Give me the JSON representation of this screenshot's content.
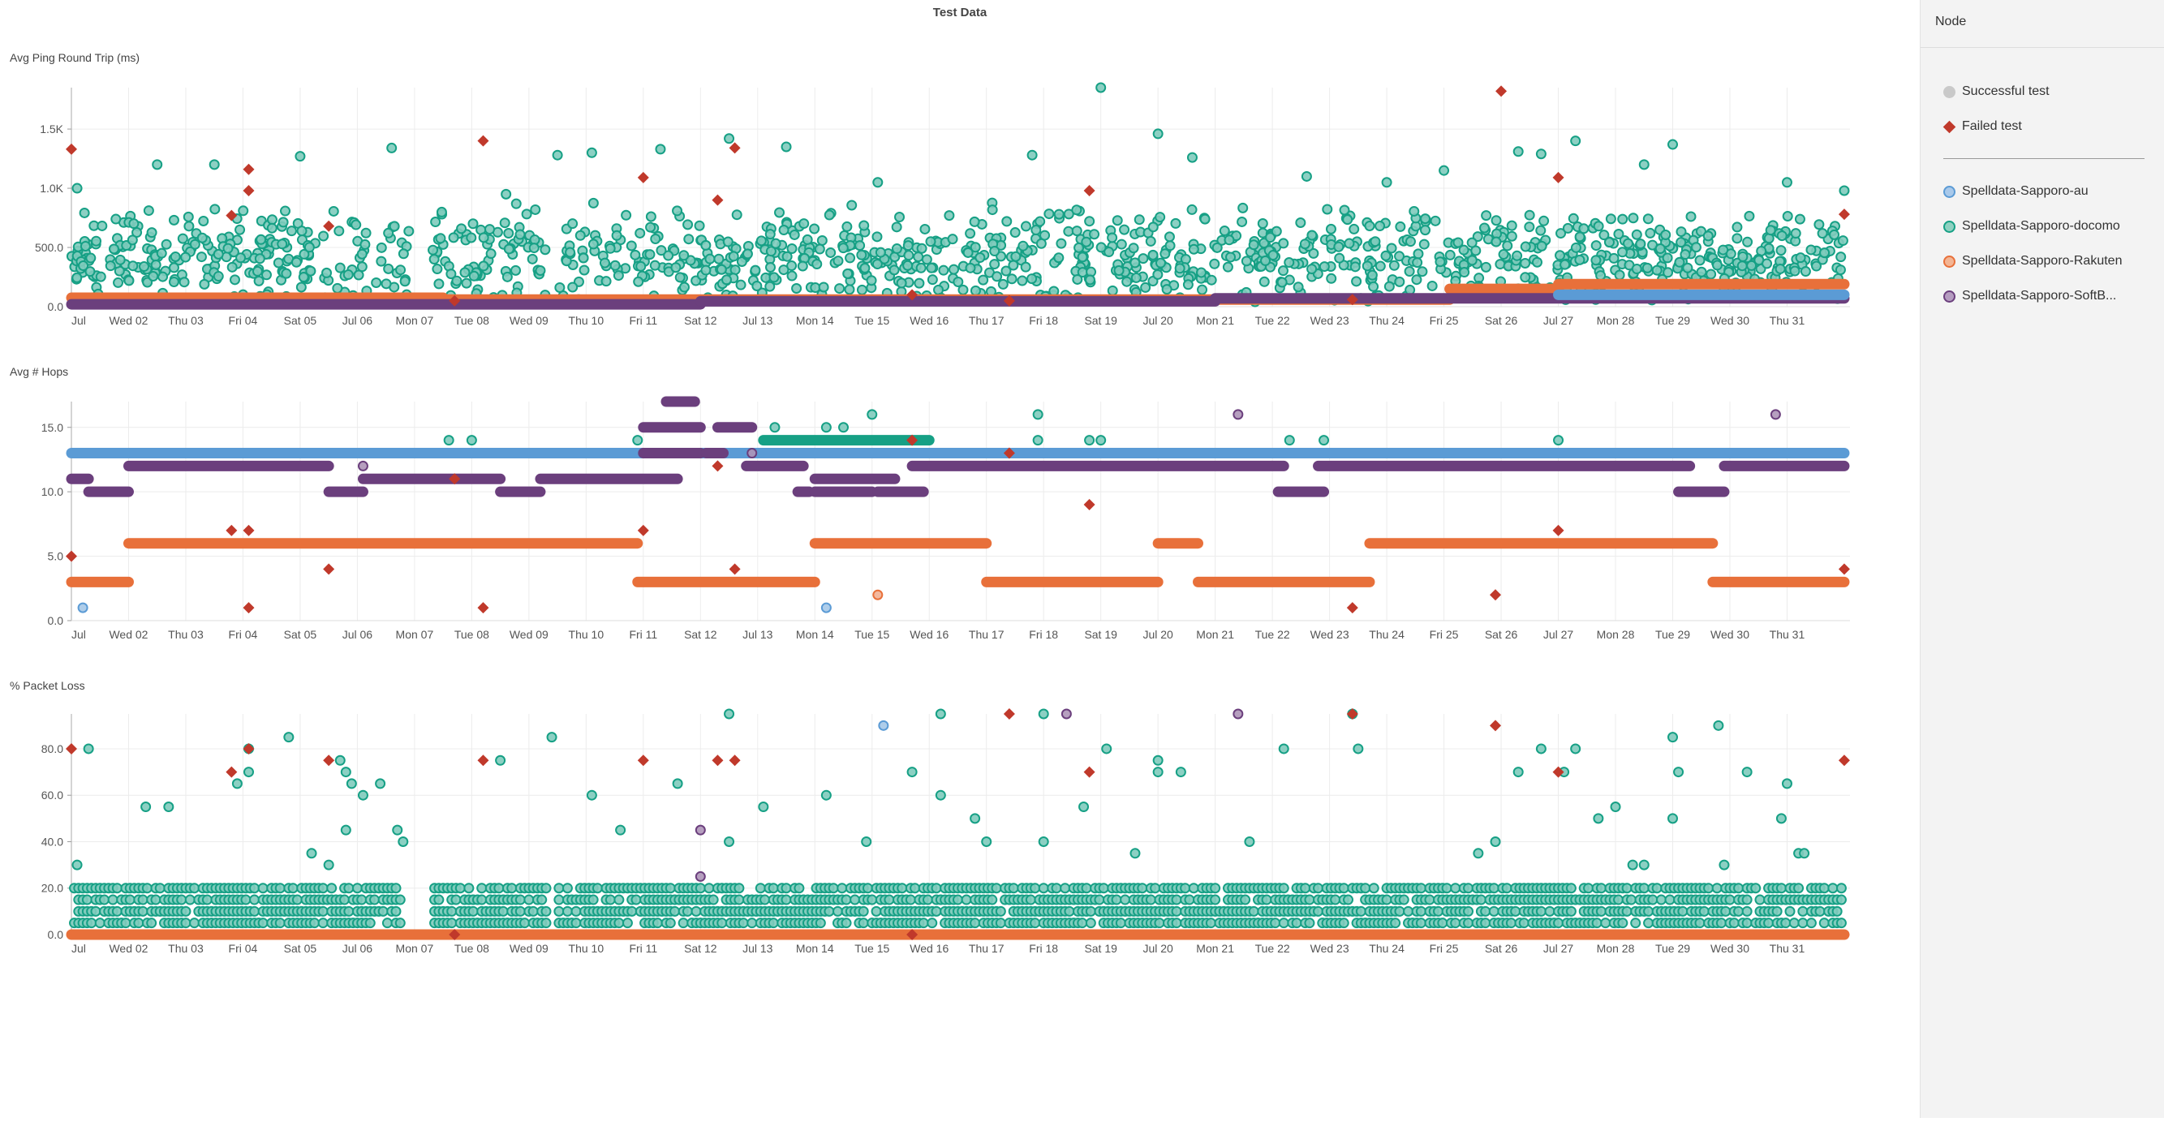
{
  "page": {
    "title": "Test Data"
  },
  "legend": {
    "header": "Node",
    "types": [
      {
        "label": "Successful test",
        "icon": "grey-circle-icon",
        "color": "#bdbdbd"
      },
      {
        "label": "Failed test",
        "icon": "red-diamond-icon",
        "color": "#c0392b"
      }
    ],
    "nodes": [
      {
        "label": "Spelldata-Sapporo-au",
        "color": "#5b9bd5"
      },
      {
        "label": "Spelldata-Sapporo-docomo",
        "color": "#16a085"
      },
      {
        "label": "Spelldata-Sapporo-Rakuten",
        "color": "#e8703a"
      },
      {
        "label": "Spelldata-Sapporo-SoftB...",
        "color": "#6b3f7d"
      }
    ]
  },
  "chart_data": [
    {
      "type": "scatter",
      "title": "Avg Ping Round Trip (ms)",
      "x_tick_labels": [
        "Jul",
        "Wed 02",
        "Thu 03",
        "Fri 04",
        "Sat 05",
        "Jul 06",
        "Mon 07",
        "Tue 08",
        "Wed 09",
        "Thu 10",
        "Fri 11",
        "Sat 12",
        "Jul 13",
        "Mon 14",
        "Tue 15",
        "Wed 16",
        "Thu 17",
        "Fri 18",
        "Sat 19",
        "Jul 20",
        "Mon 21",
        "Tue 22",
        "Wed 23",
        "Thu 24",
        "Fri 25",
        "Sat 26",
        "Jul 27",
        "Mon 28",
        "Tue 29",
        "Wed 30",
        "Thu 31"
      ],
      "xlim": [
        1,
        32.1
      ],
      "ylim": [
        0,
        1850
      ],
      "y_ticks": [
        0,
        500,
        1000,
        1500
      ],
      "y_tick_labels": [
        "0.0",
        "500.0",
        "1.0K",
        "1.5K"
      ],
      "grid": true,
      "series": [
        {
          "name": "Spelldata-Sapporo-docomo",
          "style": "scatter-dense",
          "mean": 420,
          "spread": 300,
          "outliers": [
            [
              19.0,
              1850
            ],
            [
              20.0,
              1460
            ],
            [
              12.5,
              1420
            ],
            [
              27.3,
              1400
            ],
            [
              6.6,
              1340
            ],
            [
              13.5,
              1350
            ],
            [
              29.0,
              1370
            ],
            [
              26.3,
              1310
            ],
            [
              2.5,
              1200
            ],
            [
              3.5,
              1200
            ],
            [
              5.0,
              1270
            ],
            [
              9.5,
              1280
            ],
            [
              10.1,
              1300
            ],
            [
              11.3,
              1330
            ],
            [
              17.8,
              1280
            ],
            [
              20.6,
              1260
            ],
            [
              22.6,
              1100
            ],
            [
              24.0,
              1050
            ],
            [
              25.0,
              1150
            ],
            [
              26.7,
              1290
            ],
            [
              28.5,
              1200
            ],
            [
              31.0,
              1050
            ],
            [
              32.0,
              980
            ],
            [
              15.1,
              1050
            ],
            [
              8.6,
              950
            ],
            [
              1.1,
              1000
            ]
          ]
        },
        {
          "name": "Spelldata-Sapporo-Rakuten",
          "style": "band",
          "segments": [
            [
              1.0,
              7.5,
              75
            ],
            [
              7.5,
              25.1,
              60
            ],
            [
              25.1,
              27.0,
              150
            ],
            [
              27.0,
              32.0,
              190
            ]
          ]
        },
        {
          "name": "Spelldata-Sapporo-SoftB...",
          "style": "band",
          "segments": [
            [
              1.0,
              12.0,
              20
            ],
            [
              12.0,
              21.0,
              45
            ],
            [
              21.0,
              32.0,
              70
            ]
          ]
        },
        {
          "name": "Spelldata-Sapporo-au",
          "style": "band",
          "segments": [
            [
              27.0,
              32.0,
              100
            ]
          ]
        }
      ],
      "failed_tests": [
        [
          1.0,
          1330
        ],
        [
          8.2,
          1400
        ],
        [
          12.6,
          1340
        ],
        [
          11.0,
          1090
        ],
        [
          4.1,
          1160
        ],
        [
          4.1,
          980
        ],
        [
          3.8,
          770
        ],
        [
          5.5,
          680
        ],
        [
          12.3,
          900
        ],
        [
          18.8,
          980
        ],
        [
          27.0,
          1090
        ],
        [
          26.0,
          1820
        ],
        [
          32.0,
          780
        ],
        [
          15.7,
          100
        ],
        [
          17.4,
          50
        ],
        [
          23.4,
          60
        ],
        [
          7.7,
          50
        ]
      ]
    },
    {
      "type": "scatter",
      "title": "Avg # Hops",
      "x_tick_labels": [
        "Jul",
        "Wed 02",
        "Thu 03",
        "Fri 04",
        "Sat 05",
        "Jul 06",
        "Mon 07",
        "Tue 08",
        "Wed 09",
        "Thu 10",
        "Fri 11",
        "Sat 12",
        "Jul 13",
        "Mon 14",
        "Tue 15",
        "Wed 16",
        "Thu 17",
        "Fri 18",
        "Sat 19",
        "Jul 20",
        "Mon 21",
        "Tue 22",
        "Wed 23",
        "Thu 24",
        "Fri 25",
        "Sat 26",
        "Jul 27",
        "Mon 28",
        "Tue 29",
        "Wed 30",
        "Thu 31"
      ],
      "xlim": [
        1,
        32.1
      ],
      "ylim": [
        0,
        17
      ],
      "y_ticks": [
        0,
        5,
        10,
        15
      ],
      "y_tick_labels": [
        "0.0",
        "5.0",
        "10.0",
        "15.0"
      ],
      "grid": true,
      "series": [
        {
          "name": "Spelldata-Sapporo-au",
          "style": "band",
          "segments": [
            [
              1.0,
              32.0,
              13
            ]
          ],
          "points": [
            [
              1.2,
              1
            ],
            [
              14.2,
              1
            ]
          ]
        },
        {
          "name": "Spelldata-Sapporo-docomo",
          "style": "band",
          "segments": [
            [
              13.1,
              16.0,
              14
            ]
          ],
          "points": [
            [
              7.6,
              14
            ],
            [
              8.0,
              14
            ],
            [
              10.9,
              14
            ],
            [
              13.3,
              15
            ],
            [
              14.2,
              15
            ],
            [
              14.5,
              15
            ],
            [
              15.0,
              16
            ],
            [
              17.9,
              16
            ],
            [
              17.9,
              14
            ],
            [
              18.8,
              14
            ],
            [
              19.0,
              14
            ],
            [
              22.3,
              14
            ],
            [
              22.9,
              14
            ],
            [
              27.0,
              14
            ]
          ]
        },
        {
          "name": "Spelldata-Sapporo-SoftB...",
          "style": "band",
          "segments": [
            [
              1.0,
              1.3,
              11
            ],
            [
              1.3,
              2.0,
              10
            ],
            [
              2.0,
              5.5,
              12
            ],
            [
              5.5,
              6.1,
              10
            ],
            [
              6.1,
              8.5,
              11
            ],
            [
              8.5,
              9.2,
              10
            ],
            [
              9.2,
              11.6,
              11
            ],
            [
              11.0,
              12.0,
              15
            ],
            [
              11.0,
              12.0,
              13
            ],
            [
              11.4,
              11.9,
              17
            ],
            [
              12.3,
              12.9,
              15
            ],
            [
              12.1,
              12.4,
              13
            ],
            [
              12.8,
              13.8,
              12
            ],
            [
              13.7,
              13.9,
              10
            ],
            [
              14.0,
              15.4,
              11
            ],
            [
              14.0,
              15.0,
              10
            ],
            [
              15.1,
              15.9,
              10
            ],
            [
              15.7,
              22.2,
              12
            ],
            [
              22.1,
              22.9,
              10
            ],
            [
              22.8,
              29.3,
              12
            ],
            [
              29.1,
              29.9,
              10
            ],
            [
              29.9,
              32.0,
              12
            ]
          ],
          "points": [
            [
              6.1,
              12
            ],
            [
              12.9,
              13
            ],
            [
              21.4,
              16
            ],
            [
              30.8,
              16
            ]
          ]
        },
        {
          "name": "Spelldata-Sapporo-Rakuten",
          "style": "band",
          "segments": [
            [
              1.0,
              2.0,
              3
            ],
            [
              2.0,
              10.9,
              6
            ],
            [
              10.9,
              14.0,
              3
            ],
            [
              14.0,
              17.0,
              6
            ],
            [
              17.0,
              20.0,
              3
            ],
            [
              20.0,
              20.7,
              6
            ],
            [
              20.7,
              23.7,
              3
            ],
            [
              23.7,
              29.7,
              6
            ],
            [
              29.7,
              32.0,
              3
            ]
          ],
          "points": [
            [
              15.1,
              2
            ]
          ]
        }
      ],
      "failed_tests": [
        [
          1.0,
          5
        ],
        [
          3.8,
          7
        ],
        [
          4.1,
          7
        ],
        [
          4.1,
          1
        ],
        [
          5.5,
          4
        ],
        [
          7.7,
          11
        ],
        [
          8.2,
          1
        ],
        [
          11.0,
          7
        ],
        [
          12.3,
          12
        ],
        [
          12.6,
          4
        ],
        [
          15.7,
          14
        ],
        [
          17.4,
          13
        ],
        [
          18.8,
          9
        ],
        [
          23.4,
          1
        ],
        [
          25.9,
          2
        ],
        [
          27.0,
          7
        ],
        [
          32.0,
          4
        ]
      ]
    },
    {
      "type": "scatter",
      "title": "% Packet Loss",
      "x_tick_labels": [
        "Jul",
        "Wed 02",
        "Thu 03",
        "Fri 04",
        "Sat 05",
        "Jul 06",
        "Mon 07",
        "Tue 08",
        "Wed 09",
        "Thu 10",
        "Fri 11",
        "Sat 12",
        "Jul 13",
        "Mon 14",
        "Tue 15",
        "Wed 16",
        "Thu 17",
        "Fri 18",
        "Sat 19",
        "Jul 20",
        "Mon 21",
        "Tue 22",
        "Wed 23",
        "Thu 24",
        "Fri 25",
        "Sat 26",
        "Jul 27",
        "Mon 28",
        "Tue 29",
        "Wed 30",
        "Thu 31"
      ],
      "xlim": [
        1,
        32.1
      ],
      "ylim": [
        0,
        95
      ],
      "y_ticks": [
        0,
        20,
        40,
        60,
        80
      ],
      "y_tick_labels": [
        "0.0",
        "20.0",
        "40.0",
        "60.0",
        "80.0"
      ],
      "grid": true,
      "series": [
        {
          "name": "Spelldata-Sapporo-Rakuten",
          "style": "band",
          "segments": [
            [
              1.0,
              32.0,
              0
            ]
          ]
        },
        {
          "name": "Spelldata-Sapporo-docomo",
          "style": "levels",
          "levels": [
            5,
            10,
            15,
            20
          ],
          "gaps": [
            [
              6.8,
              7.3
            ],
            [
              9.3,
              9.5
            ]
          ],
          "points": [
            [
              1.3,
              80
            ],
            [
              1.1,
              30
            ],
            [
              2.3,
              55
            ],
            [
              2.7,
              55
            ],
            [
              3.9,
              65
            ],
            [
              4.1,
              70
            ],
            [
              4.1,
              80
            ],
            [
              4.8,
              85
            ],
            [
              5.2,
              35
            ],
            [
              5.5,
              30
            ],
            [
              5.7,
              75
            ],
            [
              5.8,
              70
            ],
            [
              5.9,
              65
            ],
            [
              5.8,
              45
            ],
            [
              6.1,
              60
            ],
            [
              6.4,
              65
            ],
            [
              6.7,
              45
            ],
            [
              6.8,
              40
            ],
            [
              8.5,
              75
            ],
            [
              9.4,
              85
            ],
            [
              10.1,
              60
            ],
            [
              10.6,
              45
            ],
            [
              11.6,
              65
            ],
            [
              12.5,
              95
            ],
            [
              12.5,
              40
            ],
            [
              13.1,
              55
            ],
            [
              14.2,
              60
            ],
            [
              14.9,
              40
            ],
            [
              15.7,
              70
            ],
            [
              16.2,
              95
            ],
            [
              16.2,
              60
            ],
            [
              16.8,
              50
            ],
            [
              17.0,
              40
            ],
            [
              18.0,
              95
            ],
            [
              18.0,
              40
            ],
            [
              18.7,
              55
            ],
            [
              19.1,
              80
            ],
            [
              19.6,
              35
            ],
            [
              20.0,
              75
            ],
            [
              20.0,
              70
            ],
            [
              20.4,
              70
            ],
            [
              21.6,
              40
            ],
            [
              22.2,
              80
            ],
            [
              23.5,
              80
            ],
            [
              23.4,
              95
            ],
            [
              25.6,
              35
            ],
            [
              25.9,
              40
            ],
            [
              26.3,
              70
            ],
            [
              26.7,
              80
            ],
            [
              27.1,
              70
            ],
            [
              27.3,
              80
            ],
            [
              27.7,
              50
            ],
            [
              28.0,
              55
            ],
            [
              28.3,
              30
            ],
            [
              28.5,
              30
            ],
            [
              29.0,
              85
            ],
            [
              29.0,
              50
            ],
            [
              29.1,
              70
            ],
            [
              29.8,
              90
            ],
            [
              29.9,
              30
            ],
            [
              30.3,
              70
            ],
            [
              30.9,
              50
            ],
            [
              31.0,
              65
            ],
            [
              31.2,
              35
            ],
            [
              31.3,
              35
            ]
          ]
        },
        {
          "name": "Spelldata-Sapporo-au",
          "style": "scatter",
          "points": [
            [
              15.2,
              90
            ]
          ]
        },
        {
          "name": "Spelldata-Sapporo-SoftB...",
          "style": "scatter",
          "points": [
            [
              12.0,
              45
            ],
            [
              12.0,
              25
            ],
            [
              18.4,
              95
            ],
            [
              21.4,
              95
            ]
          ]
        }
      ],
      "failed_tests": [
        [
          1.0,
          80
        ],
        [
          3.8,
          70
        ],
        [
          4.1,
          80
        ],
        [
          5.5,
          75
        ],
        [
          8.2,
          75
        ],
        [
          7.7,
          0
        ],
        [
          11.0,
          75
        ],
        [
          12.3,
          75
        ],
        [
          12.6,
          75
        ],
        [
          15.7,
          0
        ],
        [
          17.4,
          95
        ],
        [
          18.8,
          70
        ],
        [
          23.4,
          95
        ],
        [
          25.9,
          90
        ],
        [
          27.0,
          70
        ],
        [
          32.0,
          75
        ]
      ]
    }
  ]
}
